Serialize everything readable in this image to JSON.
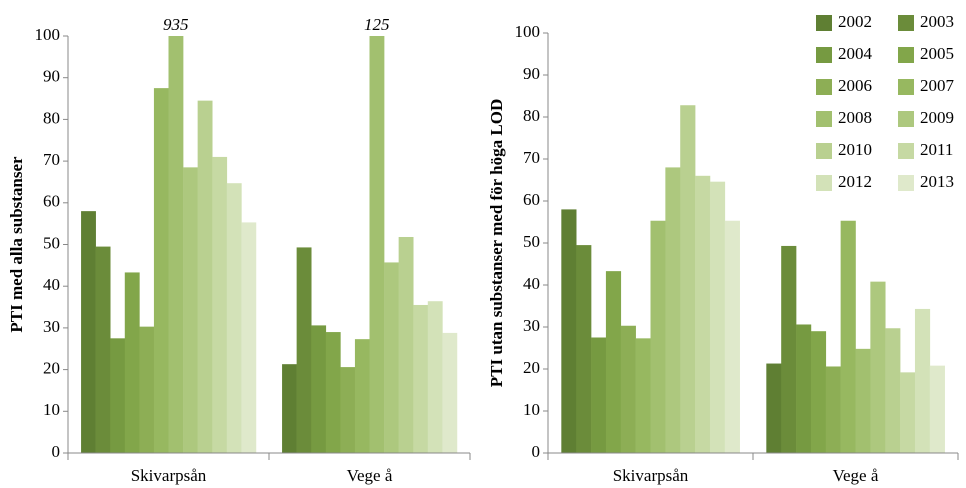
{
  "chart_data": [
    {
      "type": "bar",
      "y_label": "PTI med alla substanser",
      "categories": [
        "Skivarpsån",
        "Vege å"
      ],
      "ylim": [
        0,
        100
      ],
      "yticks": [
        0,
        10,
        20,
        30,
        40,
        50,
        60,
        70,
        80,
        90,
        100
      ],
      "legend": false,
      "series": [
        {
          "name": "2002",
          "color": "#5f7f33",
          "values": [
            58,
            21.3
          ]
        },
        {
          "name": "2003",
          "color": "#6b8c3a",
          "values": [
            49.5,
            49.3
          ]
        },
        {
          "name": "2004",
          "color": "#769a41",
          "values": [
            27.5,
            30.6
          ]
        },
        {
          "name": "2005",
          "color": "#82a64a",
          "values": [
            43.3,
            29
          ]
        },
        {
          "name": "2006",
          "color": "#8dae55",
          "values": [
            30.3,
            20.6
          ]
        },
        {
          "name": "2007",
          "color": "#97b860",
          "values": [
            87.5,
            27.3
          ]
        },
        {
          "name": "2008",
          "color": "#a2c06f",
          "values": [
            935,
            125
          ],
          "value_labels": [
            "935",
            "125"
          ]
        },
        {
          "name": "2009",
          "color": "#adc87e",
          "values": [
            68.5,
            45.7
          ]
        },
        {
          "name": "2010",
          "color": "#b9d090",
          "values": [
            84.5,
            51.8
          ]
        },
        {
          "name": "2011",
          "color": "#c6d9a3",
          "values": [
            71,
            35.5
          ]
        },
        {
          "name": "2012",
          "color": "#d3e2b8",
          "values": [
            64.7,
            36.4
          ]
        },
        {
          "name": "2013",
          "color": "#dfe9cb",
          "values": [
            55.3,
            28.8
          ]
        }
      ]
    },
    {
      "type": "bar",
      "y_label": "PTI utan substanser med för höga LOD",
      "categories": [
        "Skivarpsån",
        "Vege å"
      ],
      "ylim": [
        0,
        100
      ],
      "yticks": [
        0,
        10,
        20,
        30,
        40,
        50,
        60,
        70,
        80,
        90,
        100
      ],
      "legend": "top-right",
      "series": [
        {
          "name": "2002",
          "color": "#5f7f33",
          "values": [
            58,
            21.3
          ]
        },
        {
          "name": "2003",
          "color": "#6b8c3a",
          "values": [
            49.5,
            49.3
          ]
        },
        {
          "name": "2004",
          "color": "#769a41",
          "values": [
            27.5,
            30.6
          ]
        },
        {
          "name": "2005",
          "color": "#82a64a",
          "values": [
            43.3,
            29
          ]
        },
        {
          "name": "2006",
          "color": "#8dae55",
          "values": [
            30.3,
            20.6
          ]
        },
        {
          "name": "2007",
          "color": "#97b860",
          "values": [
            27.3,
            55.3
          ]
        },
        {
          "name": "2008",
          "color": "#a2c06f",
          "values": [
            55.3,
            24.8
          ]
        },
        {
          "name": "2009",
          "color": "#adc87e",
          "values": [
            68,
            40.8
          ]
        },
        {
          "name": "2010",
          "color": "#b9d090",
          "values": [
            82.8,
            29.7
          ]
        },
        {
          "name": "2011",
          "color": "#c6d9a3",
          "values": [
            66,
            19.2
          ]
        },
        {
          "name": "2012",
          "color": "#d3e2b8",
          "values": [
            64.6,
            34.3
          ]
        },
        {
          "name": "2013",
          "color": "#dfe9cb",
          "values": [
            55.3,
            20.8
          ]
        }
      ]
    }
  ]
}
